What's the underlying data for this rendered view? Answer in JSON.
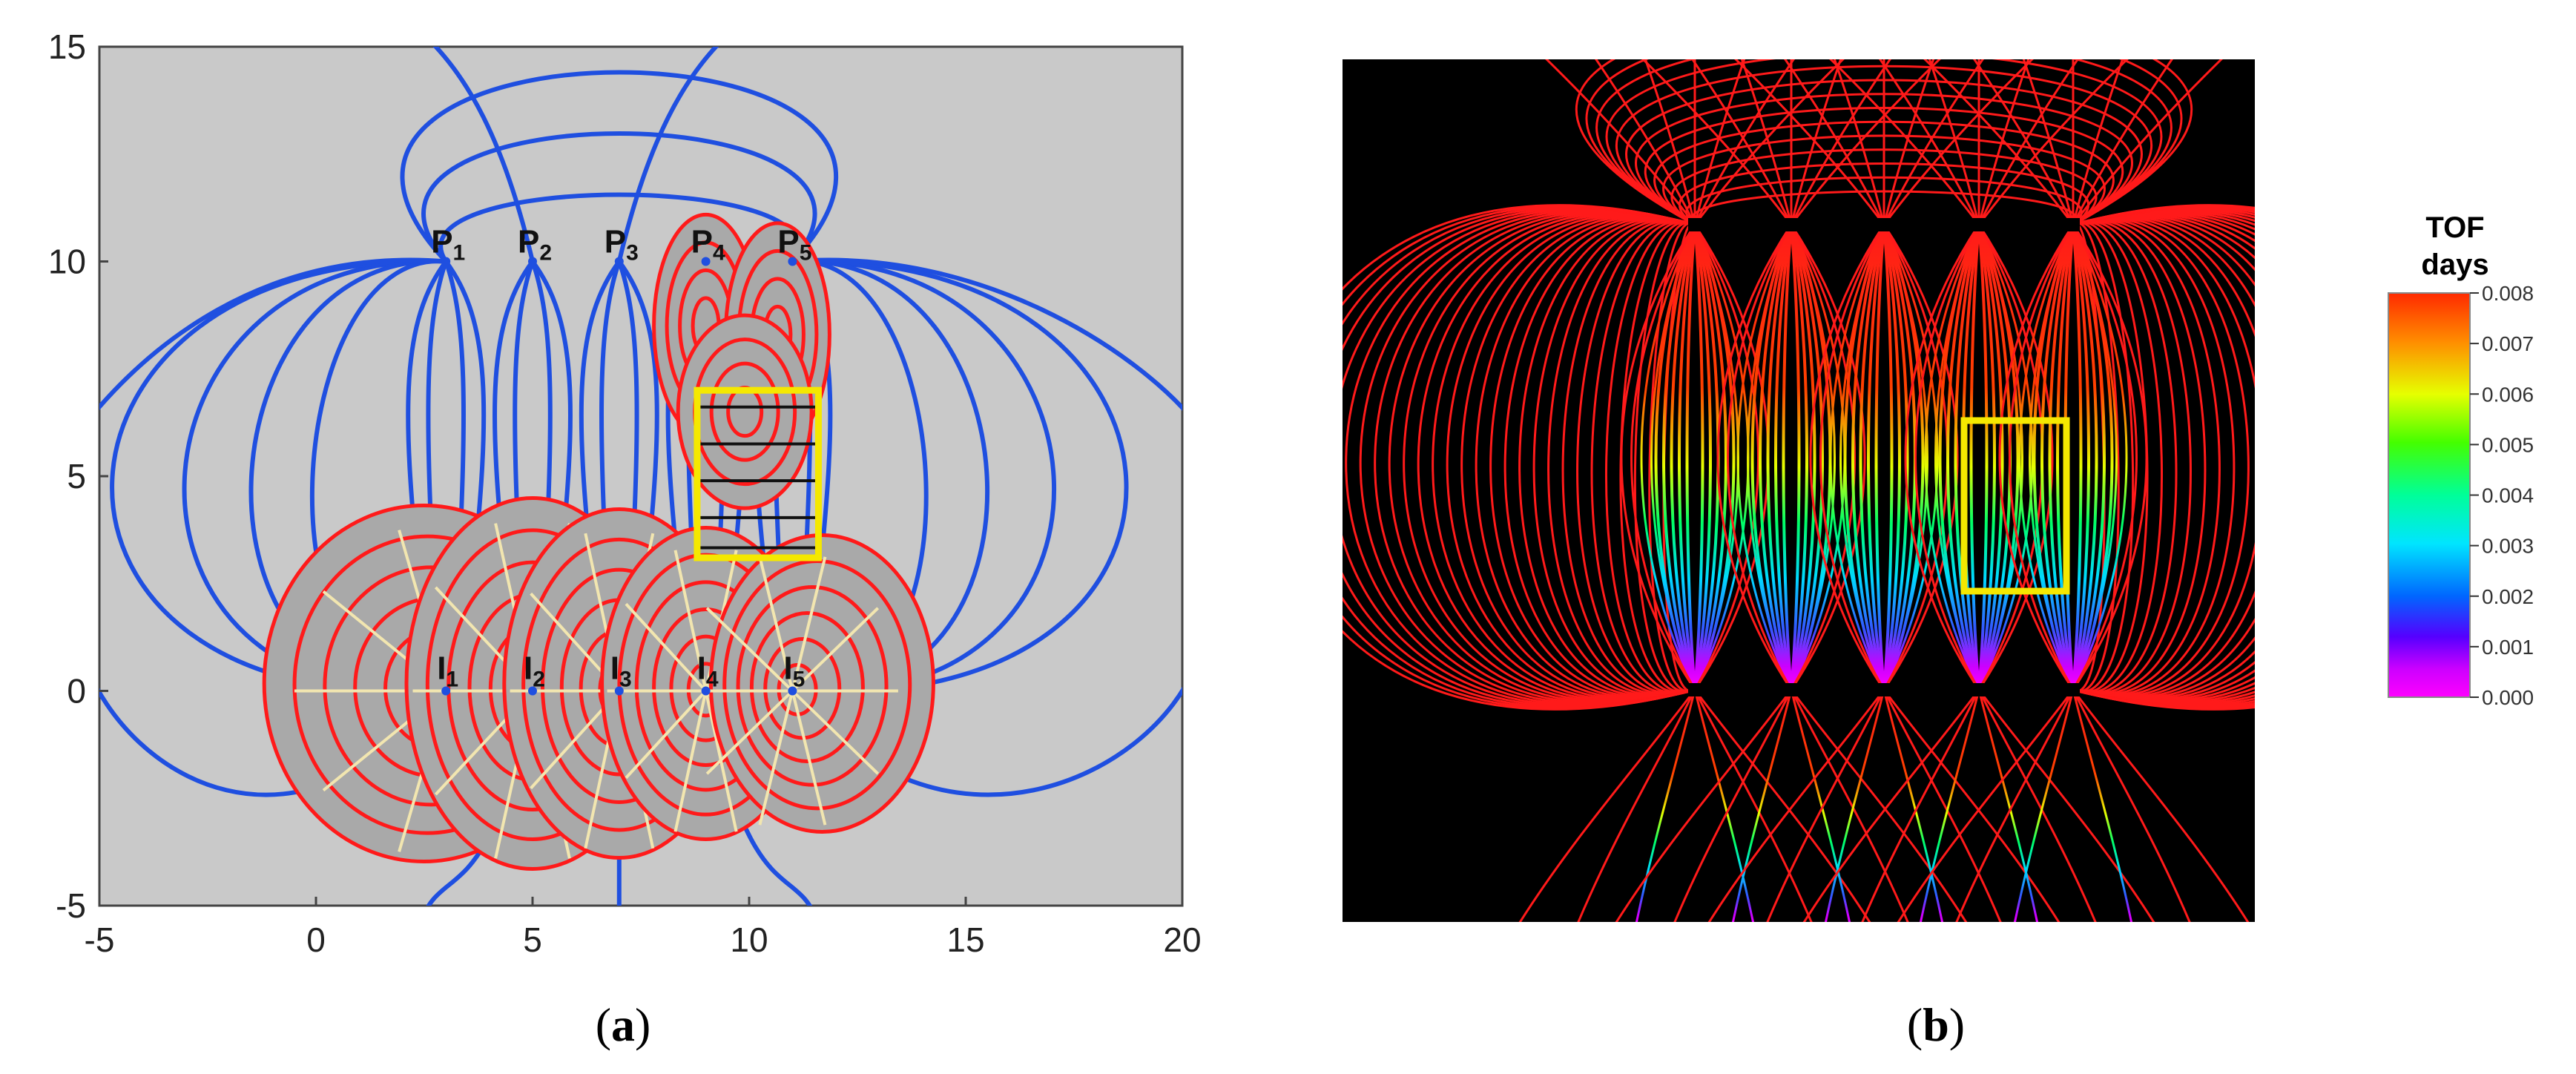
{
  "panel_a": {
    "x_ticks": [
      "-5",
      "0",
      "5",
      "10",
      "15",
      "20"
    ],
    "y_ticks": [
      "15",
      "10",
      "5",
      "0",
      "-5"
    ],
    "producers": [
      {
        "letter": "P",
        "sub": "1"
      },
      {
        "letter": "P",
        "sub": "2"
      },
      {
        "letter": "P",
        "sub": "3"
      },
      {
        "letter": "P",
        "sub": "4"
      },
      {
        "letter": "P",
        "sub": "5"
      }
    ],
    "injectors": [
      {
        "letter": "I",
        "sub": "1"
      },
      {
        "letter": "I",
        "sub": "2"
      },
      {
        "letter": "I",
        "sub": "3"
      },
      {
        "letter": "I",
        "sub": "4"
      },
      {
        "letter": "I",
        "sub": "5"
      }
    ],
    "colors": {
      "background": "#c9c9c9",
      "streamline": "#1f4fe0",
      "tof_contour": "#ff1a1a",
      "inner_streamline": "#f2e6b0",
      "highlight_box": "#f5e800"
    }
  },
  "panel_b": {
    "legend_title_line1": "TOF",
    "legend_title_line2": "days",
    "legend_ticks": [
      "0.008",
      "0.007",
      "0.006",
      "0.005",
      "0.004",
      "0.003",
      "0.002",
      "0.001",
      "0.000"
    ],
    "colors": {
      "background": "#000000",
      "streamline": "#ff1a1a",
      "highlight_box": "#f5e800"
    }
  },
  "captions": {
    "a_open": "(",
    "a_letter": "a",
    "a_close": ")",
    "b_open": "(",
    "b_letter": "b",
    "b_close": ")"
  }
}
